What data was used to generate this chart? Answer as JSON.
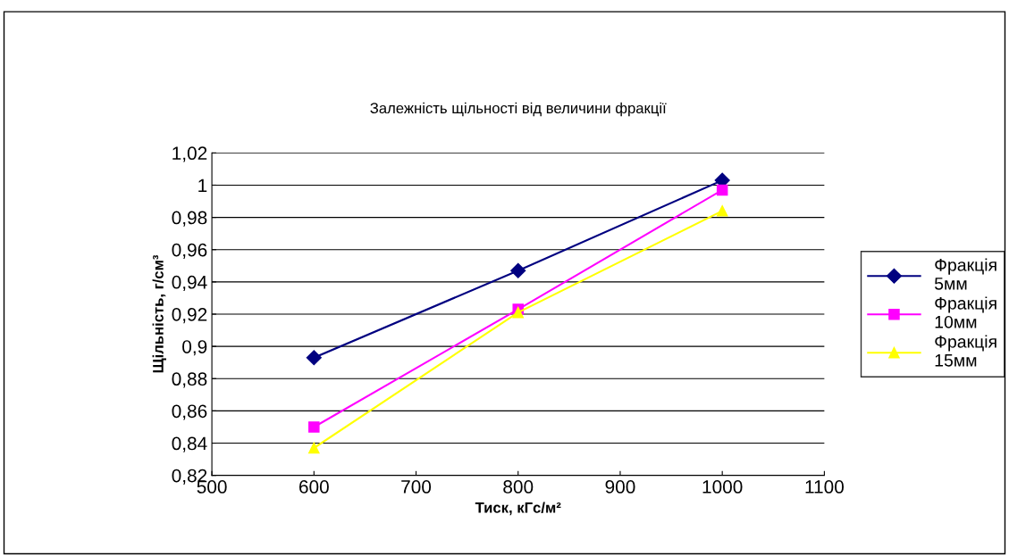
{
  "chart_data": {
    "type": "line",
    "title": "Залежність щільності від величини фракції",
    "xlabel": "Тиск, кГс/м²",
    "ylabel": "Щільність, г/см³",
    "x": [
      600,
      800,
      1000
    ],
    "series": [
      {
        "name": "Фракція 5мм",
        "color": "#000080",
        "marker": "diamond",
        "values": [
          0.893,
          0.947,
          1.003
        ]
      },
      {
        "name": "Фракція 10мм",
        "color": "#ff00ff",
        "marker": "square",
        "values": [
          0.85,
          0.923,
          0.997
        ]
      },
      {
        "name": "Фракція 15мм",
        "color": "#ffff00",
        "marker": "triangle",
        "values": [
          0.837,
          0.921,
          0.984
        ]
      }
    ],
    "xlim": [
      500,
      1100
    ],
    "xticks": [
      500,
      600,
      700,
      800,
      900,
      1000,
      1100
    ],
    "ylim": [
      0.82,
      1.02
    ],
    "yticks": [
      {
        "value": 0.82,
        "label": "0,82"
      },
      {
        "value": 0.84,
        "label": "0,84"
      },
      {
        "value": 0.86,
        "label": "0,86"
      },
      {
        "value": 0.88,
        "label": "0,88"
      },
      {
        "value": 0.9,
        "label": "0,9"
      },
      {
        "value": 0.92,
        "label": "0,92"
      },
      {
        "value": 0.94,
        "label": "0,94"
      },
      {
        "value": 0.96,
        "label": "0,96"
      },
      {
        "value": 0.98,
        "label": "0,98"
      },
      {
        "value": 1.0,
        "label": "1"
      },
      {
        "value": 1.02,
        "label": "1,02"
      }
    ],
    "grid": "y",
    "legend": "right",
    "line_style": "solid"
  }
}
